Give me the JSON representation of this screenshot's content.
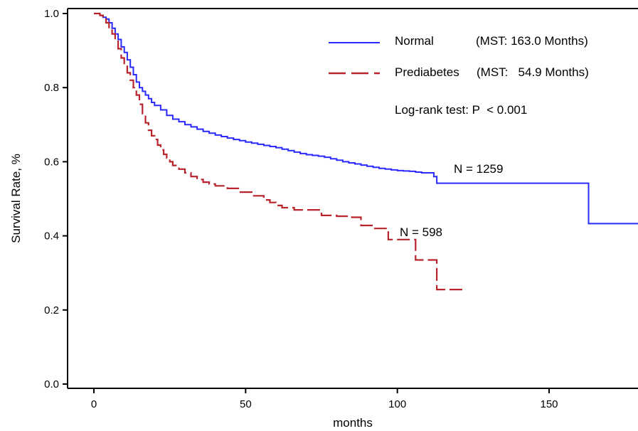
{
  "chart_data": {
    "type": "line",
    "xlabel": "months",
    "ylabel": "Survival Rate, %",
    "xlim": [
      -8,
      180
    ],
    "ylim": [
      0,
      1.0
    ],
    "x_ticks": [
      "0",
      "50",
      "100",
      "150"
    ],
    "x_tick_values": [
      0,
      50,
      100,
      150
    ],
    "y_ticks": [
      "0.0",
      "0.2",
      "0.4",
      "0.6",
      "0.8",
      "1.0"
    ],
    "y_tick_values": [
      0,
      0.2,
      0.4,
      0.6,
      0.8,
      1.0
    ],
    "grid": false,
    "legend_position": "top-right",
    "series": [
      {
        "name": "Normal",
        "legend_text": "Normal",
        "mst_text": "(MST: 163.0 Months)",
        "color": "#2a2aff",
        "dash": "solid",
        "n_label": "N = 1259",
        "x": [
          0,
          2,
          3,
          4,
          5,
          6,
          7,
          8,
          9,
          10,
          11,
          12,
          13,
          14,
          15,
          16,
          17,
          18,
          19,
          20,
          22,
          24,
          26,
          28,
          30,
          32,
          34,
          36,
          38,
          40,
          42,
          44,
          46,
          48,
          50,
          52,
          54,
          56,
          58,
          60,
          62,
          64,
          66,
          68,
          70,
          72,
          74,
          76,
          78,
          80,
          82,
          84,
          86,
          88,
          90,
          92,
          94,
          96,
          98,
          100,
          102,
          104,
          106,
          108,
          110,
          112,
          113,
          130,
          150,
          163,
          180
        ],
        "y": [
          1.0,
          0.995,
          0.99,
          0.985,
          0.975,
          0.96,
          0.945,
          0.93,
          0.91,
          0.895,
          0.875,
          0.855,
          0.835,
          0.815,
          0.8,
          0.79,
          0.78,
          0.77,
          0.76,
          0.752,
          0.74,
          0.725,
          0.715,
          0.708,
          0.7,
          0.694,
          0.688,
          0.682,
          0.677,
          0.672,
          0.668,
          0.664,
          0.66,
          0.657,
          0.653,
          0.65,
          0.647,
          0.644,
          0.641,
          0.638,
          0.634,
          0.63,
          0.626,
          0.622,
          0.619,
          0.617,
          0.615,
          0.612,
          0.608,
          0.604,
          0.6,
          0.597,
          0.594,
          0.591,
          0.588,
          0.585,
          0.582,
          0.58,
          0.578,
          0.576,
          0.575,
          0.574,
          0.572,
          0.57,
          0.57,
          0.56,
          0.542,
          0.542,
          0.542,
          0.433,
          0.433
        ]
      },
      {
        "name": "Prediabetes",
        "legend_text": "Prediabetes",
        "mst_text": "(MST:   54.9 Months)",
        "color": "#b8232c",
        "dash": "dashed",
        "n_label": "N = 598",
        "x": [
          0,
          2,
          3,
          4,
          5,
          6,
          7,
          8,
          9,
          10,
          11,
          12,
          13,
          14,
          15,
          16,
          17,
          18,
          19,
          20,
          21,
          22,
          23,
          24,
          25,
          26,
          28,
          30,
          32,
          34,
          36,
          38,
          40,
          44,
          48,
          52,
          56,
          58,
          60,
          62,
          66,
          70,
          75,
          80,
          85,
          88,
          92,
          97,
          100,
          103,
          106,
          108,
          110,
          113,
          116,
          122
        ],
        "y": [
          1.0,
          0.995,
          0.985,
          0.975,
          0.96,
          0.945,
          0.925,
          0.905,
          0.88,
          0.86,
          0.84,
          0.82,
          0.8,
          0.78,
          0.755,
          0.73,
          0.705,
          0.685,
          0.67,
          0.66,
          0.645,
          0.632,
          0.62,
          0.61,
          0.6,
          0.59,
          0.58,
          0.57,
          0.56,
          0.552,
          0.545,
          0.54,
          0.535,
          0.528,
          0.518,
          0.508,
          0.497,
          0.49,
          0.482,
          0.476,
          0.47,
          0.47,
          0.455,
          0.453,
          0.45,
          0.428,
          0.42,
          0.39,
          0.39,
          0.39,
          0.335,
          0.335,
          0.335,
          0.255,
          0.255,
          0.255
        ]
      }
    ],
    "annotations": [
      "Log-rank test: P  < 0.001"
    ]
  }
}
